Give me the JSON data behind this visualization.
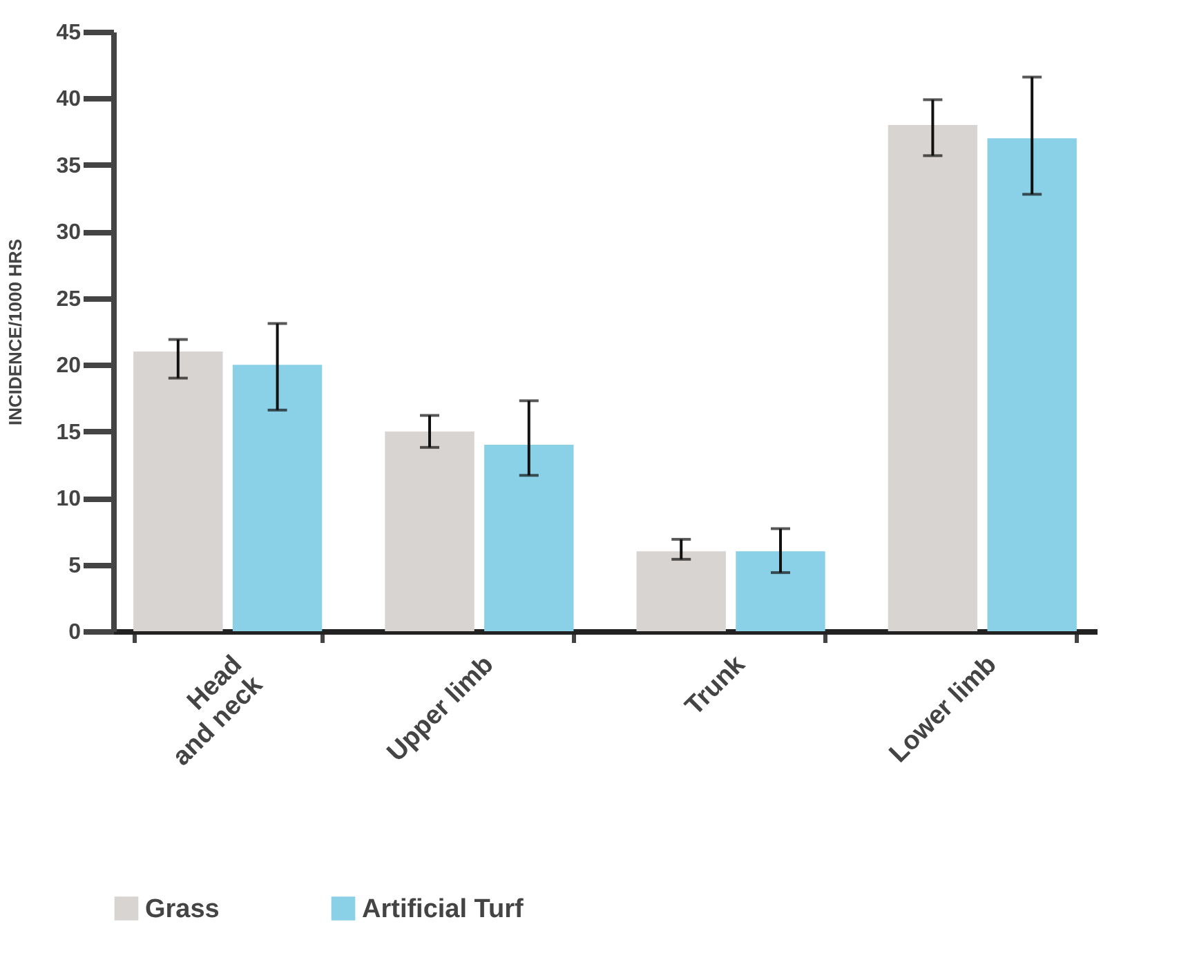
{
  "chart_data": {
    "type": "bar",
    "ylabel": "INCIDENCE/1000 HRS",
    "categories": [
      "Head\nand neck",
      "Upper limb",
      "Trunk",
      "Lower limb"
    ],
    "series": [
      {
        "name": "Grass",
        "color": "#d8d4d1",
        "values": [
          21,
          15,
          6,
          38
        ],
        "errors": [
          [
            19.0,
            21.9
          ],
          [
            13.8,
            16.2
          ],
          [
            5.4,
            6.9
          ],
          [
            35.7,
            39.9
          ]
        ]
      },
      {
        "name": "Artificial Turf",
        "color": "#8ad1e7",
        "values": [
          20,
          14,
          6,
          37
        ],
        "errors": [
          [
            16.6,
            23.1
          ],
          [
            11.7,
            17.3
          ],
          [
            4.4,
            7.7
          ],
          [
            32.8,
            41.6
          ]
        ]
      }
    ],
    "ylim": [
      0,
      45
    ],
    "yticks": [
      0,
      5,
      10,
      15,
      20,
      25,
      30,
      35,
      40,
      45
    ],
    "grid": false,
    "legend": "bottom"
  }
}
